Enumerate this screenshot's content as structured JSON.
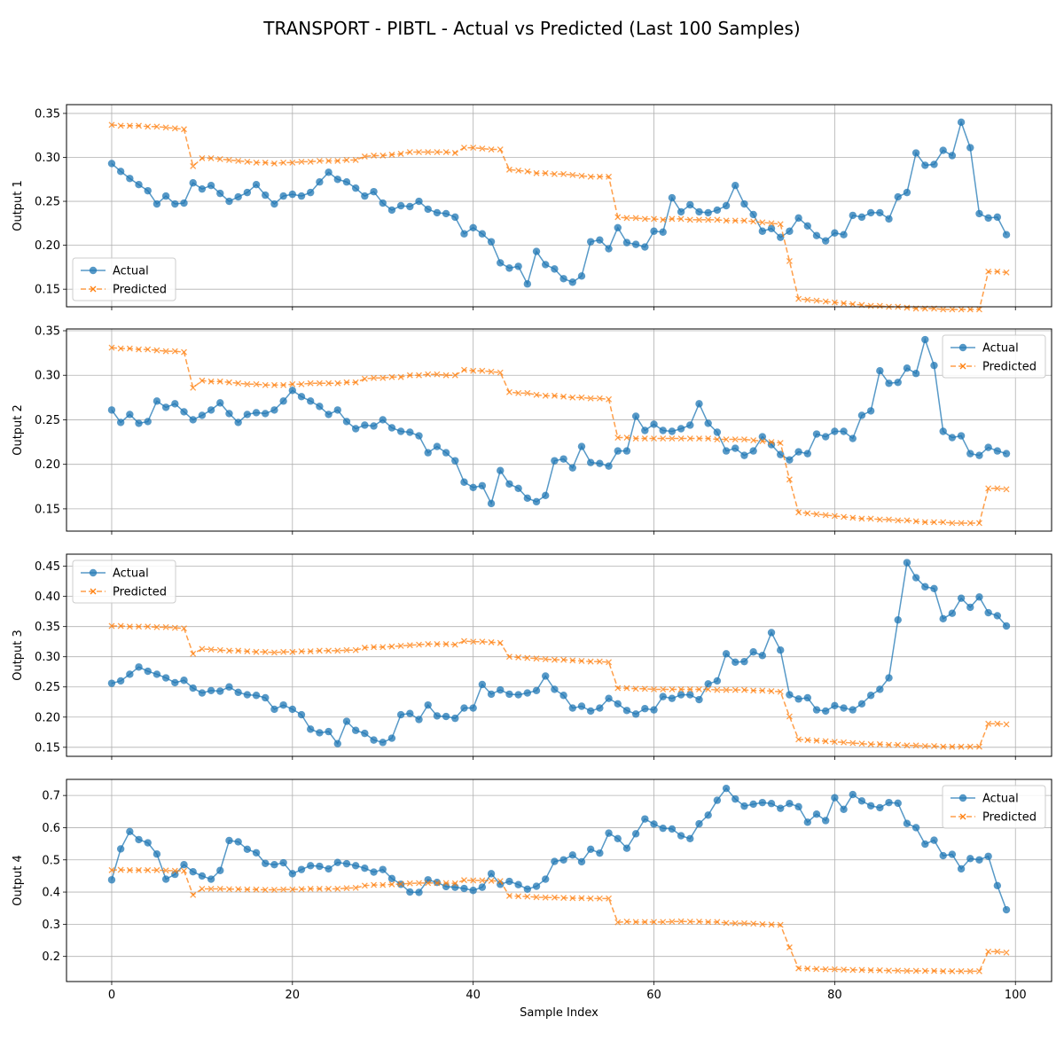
{
  "title": "TRANSPORT - PIBTL - Actual vs Predicted (Last 100 Samples)",
  "xlabel": "Sample Index",
  "colors": {
    "actual": "#1f77b4",
    "predicted": "#ff7f0e",
    "grid": "#b0b0b0"
  },
  "chart_data": [
    {
      "type": "line",
      "ylabel": "Output 1",
      "xlim": [
        -5,
        104
      ],
      "ylim": [
        0.13,
        0.36
      ],
      "xticks": [
        0,
        20,
        40,
        60,
        80,
        100
      ],
      "yticks": [
        0.15,
        0.2,
        0.25,
        0.3,
        0.35
      ],
      "ytick_labels": [
        "0.15",
        "0.20",
        "0.25",
        "0.30",
        "0.35"
      ],
      "grid": true,
      "legend_position": "lower-left",
      "series": [
        {
          "name": "Actual",
          "values": [
            0.293,
            0.284,
            0.276,
            0.269,
            0.262,
            0.247,
            0.256,
            0.247,
            0.248,
            0.271,
            0.264,
            0.268,
            0.259,
            0.25,
            0.255,
            0.26,
            0.269,
            0.257,
            0.247,
            0.256,
            0.258,
            0.256,
            0.26,
            0.272,
            0.283,
            0.275,
            0.272,
            0.265,
            0.256,
            0.261,
            0.248,
            0.24,
            0.245,
            0.244,
            0.25,
            0.241,
            0.237,
            0.236,
            0.232,
            0.213,
            0.22,
            0.213,
            0.204,
            0.18,
            0.174,
            0.176,
            0.156,
            0.193,
            0.178,
            0.173,
            0.162,
            0.158,
            0.165,
            0.204,
            0.206,
            0.196,
            0.22,
            0.203,
            0.201,
            0.198,
            0.216,
            0.215,
            0.254,
            0.238,
            0.246,
            0.238,
            0.237,
            0.24,
            0.245,
            0.268,
            0.247,
            0.235,
            0.216,
            0.219,
            0.209,
            0.216,
            0.231,
            0.222,
            0.211,
            0.205,
            0.214,
            0.212,
            0.234,
            0.232,
            0.237,
            0.237,
            0.23,
            0.255,
            0.26,
            0.305,
            0.291,
            0.292,
            0.308,
            0.302,
            0.34,
            0.311,
            0.236,
            0.231,
            0.232,
            0.212
          ]
        },
        {
          "name": "Predicted",
          "values": [
            0.337,
            0.336,
            0.336,
            0.336,
            0.335,
            0.335,
            0.334,
            0.333,
            0.332,
            0.29,
            0.299,
            0.299,
            0.298,
            0.297,
            0.296,
            0.295,
            0.294,
            0.294,
            0.293,
            0.294,
            0.294,
            0.295,
            0.295,
            0.296,
            0.296,
            0.296,
            0.297,
            0.297,
            0.301,
            0.302,
            0.302,
            0.303,
            0.304,
            0.306,
            0.306,
            0.306,
            0.306,
            0.306,
            0.305,
            0.311,
            0.311,
            0.31,
            0.309,
            0.309,
            0.286,
            0.285,
            0.284,
            0.282,
            0.282,
            0.281,
            0.281,
            0.28,
            0.279,
            0.278,
            0.278,
            0.278,
            0.232,
            0.231,
            0.231,
            0.23,
            0.23,
            0.229,
            0.23,
            0.23,
            0.229,
            0.229,
            0.229,
            0.229,
            0.228,
            0.228,
            0.228,
            0.227,
            0.226,
            0.225,
            0.224,
            0.182,
            0.139,
            0.138,
            0.137,
            0.136,
            0.135,
            0.134,
            0.133,
            0.132,
            0.131,
            0.131,
            0.13,
            0.13,
            0.129,
            0.128,
            0.128,
            0.128,
            0.127,
            0.127,
            0.127,
            0.127,
            0.127,
            0.17,
            0.17,
            0.169
          ]
        }
      ]
    },
    {
      "type": "line",
      "ylabel": "Output 2",
      "xlim": [
        -5,
        104
      ],
      "ylim": [
        0.125,
        0.352
      ],
      "xticks": [
        0,
        20,
        40,
        60,
        80,
        100
      ],
      "yticks": [
        0.15,
        0.2,
        0.25,
        0.3,
        0.35
      ],
      "ytick_labels": [
        "0.15",
        "0.20",
        "0.25",
        "0.30",
        "0.35"
      ],
      "grid": true,
      "legend_position": "upper-right",
      "series": [
        {
          "name": "Actual",
          "values": [
            0.261,
            0.247,
            0.256,
            0.246,
            0.248,
            0.271,
            0.264,
            0.268,
            0.259,
            0.25,
            0.255,
            0.261,
            0.269,
            0.257,
            0.247,
            0.256,
            0.258,
            0.257,
            0.261,
            0.271,
            0.283,
            0.276,
            0.271,
            0.265,
            0.256,
            0.261,
            0.248,
            0.24,
            0.244,
            0.243,
            0.25,
            0.241,
            0.237,
            0.236,
            0.232,
            0.213,
            0.22,
            0.213,
            0.204,
            0.18,
            0.174,
            0.176,
            0.156,
            0.193,
            0.178,
            0.173,
            0.162,
            0.158,
            0.165,
            0.204,
            0.206,
            0.196,
            0.22,
            0.202,
            0.201,
            0.198,
            0.215,
            0.215,
            0.254,
            0.238,
            0.245,
            0.238,
            0.237,
            0.24,
            0.244,
            0.268,
            0.246,
            0.236,
            0.215,
            0.218,
            0.21,
            0.215,
            0.231,
            0.222,
            0.211,
            0.205,
            0.214,
            0.212,
            0.234,
            0.231,
            0.237,
            0.237,
            0.229,
            0.255,
            0.26,
            0.305,
            0.291,
            0.292,
            0.308,
            0.302,
            0.34,
            0.311,
            0.237,
            0.23,
            0.232,
            0.212,
            0.21,
            0.219,
            0.215,
            0.212
          ]
        },
        {
          "name": "Predicted",
          "values": [
            0.331,
            0.33,
            0.33,
            0.329,
            0.329,
            0.328,
            0.327,
            0.327,
            0.326,
            0.286,
            0.294,
            0.293,
            0.293,
            0.292,
            0.291,
            0.29,
            0.29,
            0.289,
            0.289,
            0.289,
            0.29,
            0.29,
            0.291,
            0.291,
            0.291,
            0.291,
            0.292,
            0.292,
            0.296,
            0.297,
            0.297,
            0.298,
            0.298,
            0.3,
            0.3,
            0.301,
            0.301,
            0.3,
            0.3,
            0.306,
            0.305,
            0.305,
            0.304,
            0.303,
            0.281,
            0.28,
            0.28,
            0.278,
            0.277,
            0.277,
            0.276,
            0.275,
            0.275,
            0.274,
            0.274,
            0.273,
            0.23,
            0.23,
            0.229,
            0.229,
            0.229,
            0.229,
            0.229,
            0.229,
            0.229,
            0.229,
            0.229,
            0.228,
            0.228,
            0.228,
            0.228,
            0.227,
            0.226,
            0.225,
            0.224,
            0.183,
            0.146,
            0.145,
            0.144,
            0.143,
            0.142,
            0.141,
            0.14,
            0.139,
            0.139,
            0.138,
            0.138,
            0.137,
            0.137,
            0.136,
            0.135,
            0.135,
            0.135,
            0.134,
            0.134,
            0.134,
            0.134,
            0.173,
            0.173,
            0.172
          ]
        }
      ]
    },
    {
      "type": "line",
      "ylabel": "Output 3",
      "xlim": [
        -5,
        104
      ],
      "ylim": [
        0.135,
        0.47
      ],
      "xticks": [
        0,
        20,
        40,
        60,
        80,
        100
      ],
      "yticks": [
        0.15,
        0.2,
        0.25,
        0.3,
        0.35,
        0.4,
        0.45
      ],
      "ytick_labels": [
        "0.15",
        "0.20",
        "0.25",
        "0.30",
        "0.35",
        "0.40",
        "0.45"
      ],
      "grid": true,
      "legend_position": "upper-left",
      "series": [
        {
          "name": "Actual",
          "values": [
            0.256,
            0.26,
            0.271,
            0.283,
            0.276,
            0.271,
            0.265,
            0.257,
            0.261,
            0.248,
            0.24,
            0.244,
            0.243,
            0.25,
            0.241,
            0.237,
            0.236,
            0.232,
            0.213,
            0.22,
            0.213,
            0.204,
            0.18,
            0.174,
            0.176,
            0.156,
            0.193,
            0.178,
            0.173,
            0.162,
            0.158,
            0.165,
            0.204,
            0.206,
            0.196,
            0.22,
            0.202,
            0.201,
            0.198,
            0.215,
            0.215,
            0.254,
            0.238,
            0.245,
            0.238,
            0.237,
            0.24,
            0.244,
            0.268,
            0.246,
            0.236,
            0.215,
            0.218,
            0.21,
            0.215,
            0.231,
            0.222,
            0.211,
            0.205,
            0.214,
            0.212,
            0.234,
            0.231,
            0.237,
            0.237,
            0.229,
            0.255,
            0.26,
            0.305,
            0.291,
            0.292,
            0.308,
            0.302,
            0.34,
            0.311,
            0.237,
            0.23,
            0.232,
            0.212,
            0.21,
            0.219,
            0.215,
            0.212,
            0.222,
            0.236,
            0.246,
            0.265,
            0.361,
            0.456,
            0.431,
            0.416,
            0.413,
            0.363,
            0.372,
            0.397,
            0.382,
            0.399,
            0.373,
            0.368,
            0.351
          ]
        },
        {
          "name": "Predicted",
          "values": [
            0.351,
            0.351,
            0.35,
            0.35,
            0.35,
            0.349,
            0.349,
            0.348,
            0.347,
            0.305,
            0.313,
            0.312,
            0.311,
            0.31,
            0.31,
            0.309,
            0.308,
            0.308,
            0.307,
            0.308,
            0.308,
            0.309,
            0.309,
            0.31,
            0.31,
            0.31,
            0.311,
            0.311,
            0.315,
            0.316,
            0.316,
            0.317,
            0.318,
            0.319,
            0.32,
            0.321,
            0.321,
            0.321,
            0.32,
            0.326,
            0.325,
            0.325,
            0.324,
            0.323,
            0.3,
            0.299,
            0.298,
            0.297,
            0.296,
            0.295,
            0.295,
            0.294,
            0.293,
            0.292,
            0.292,
            0.291,
            0.248,
            0.248,
            0.247,
            0.247,
            0.246,
            0.246,
            0.246,
            0.246,
            0.246,
            0.246,
            0.246,
            0.245,
            0.245,
            0.245,
            0.245,
            0.244,
            0.244,
            0.243,
            0.242,
            0.201,
            0.163,
            0.162,
            0.161,
            0.16,
            0.159,
            0.158,
            0.157,
            0.156,
            0.155,
            0.155,
            0.154,
            0.154,
            0.153,
            0.153,
            0.152,
            0.152,
            0.151,
            0.151,
            0.151,
            0.151,
            0.151,
            0.189,
            0.189,
            0.188
          ]
        }
      ]
    },
    {
      "type": "line",
      "ylabel": "Output 4",
      "xlim": [
        -5,
        104
      ],
      "ylim": [
        0.122,
        0.75
      ],
      "xticks": [
        0,
        20,
        40,
        60,
        80,
        100
      ],
      "xtick_labels": [
        "0",
        "20",
        "40",
        "60",
        "80",
        "100"
      ],
      "yticks": [
        0.2,
        0.3,
        0.4,
        0.5,
        0.6,
        0.7
      ],
      "ytick_labels": [
        "0.2",
        "0.3",
        "0.4",
        "0.5",
        "0.6",
        "0.7"
      ],
      "grid": true,
      "legend_position": "upper-right",
      "series": [
        {
          "name": "Actual",
          "values": [
            0.438,
            0.534,
            0.588,
            0.563,
            0.553,
            0.518,
            0.44,
            0.455,
            0.485,
            0.463,
            0.45,
            0.44,
            0.467,
            0.56,
            0.556,
            0.533,
            0.522,
            0.489,
            0.485,
            0.491,
            0.457,
            0.47,
            0.482,
            0.48,
            0.472,
            0.492,
            0.488,
            0.482,
            0.474,
            0.462,
            0.47,
            0.442,
            0.424,
            0.4,
            0.399,
            0.438,
            0.43,
            0.417,
            0.415,
            0.411,
            0.405,
            0.415,
            0.457,
            0.424,
            0.433,
            0.423,
            0.409,
            0.418,
            0.44,
            0.495,
            0.5,
            0.515,
            0.494,
            0.533,
            0.521,
            0.583,
            0.566,
            0.536,
            0.581,
            0.627,
            0.611,
            0.598,
            0.596,
            0.575,
            0.566,
            0.612,
            0.639,
            0.685,
            0.722,
            0.689,
            0.667,
            0.673,
            0.678,
            0.675,
            0.66,
            0.675,
            0.665,
            0.617,
            0.642,
            0.622,
            0.693,
            0.657,
            0.703,
            0.683,
            0.668,
            0.662,
            0.678,
            0.676,
            0.613,
            0.6,
            0.549,
            0.561,
            0.513,
            0.517,
            0.472,
            0.504,
            0.5,
            0.511,
            0.42,
            0.345
          ]
        },
        {
          "name": "Predicted",
          "values": [
            0.468,
            0.469,
            0.468,
            0.468,
            0.468,
            0.468,
            0.467,
            0.466,
            0.466,
            0.391,
            0.41,
            0.41,
            0.41,
            0.409,
            0.409,
            0.408,
            0.408,
            0.407,
            0.407,
            0.408,
            0.408,
            0.409,
            0.41,
            0.41,
            0.41,
            0.41,
            0.412,
            0.413,
            0.42,
            0.422,
            0.422,
            0.424,
            0.425,
            0.427,
            0.428,
            0.428,
            0.428,
            0.428,
            0.427,
            0.437,
            0.436,
            0.436,
            0.435,
            0.434,
            0.388,
            0.387,
            0.386,
            0.384,
            0.383,
            0.383,
            0.382,
            0.381,
            0.381,
            0.38,
            0.38,
            0.38,
            0.306,
            0.308,
            0.307,
            0.307,
            0.307,
            0.307,
            0.308,
            0.309,
            0.308,
            0.308,
            0.307,
            0.307,
            0.304,
            0.303,
            0.303,
            0.302,
            0.3,
            0.299,
            0.298,
            0.228,
            0.163,
            0.162,
            0.161,
            0.16,
            0.16,
            0.159,
            0.158,
            0.158,
            0.157,
            0.157,
            0.156,
            0.156,
            0.155,
            0.155,
            0.155,
            0.155,
            0.154,
            0.154,
            0.154,
            0.154,
            0.154,
            0.215,
            0.215,
            0.212
          ]
        }
      ]
    }
  ]
}
